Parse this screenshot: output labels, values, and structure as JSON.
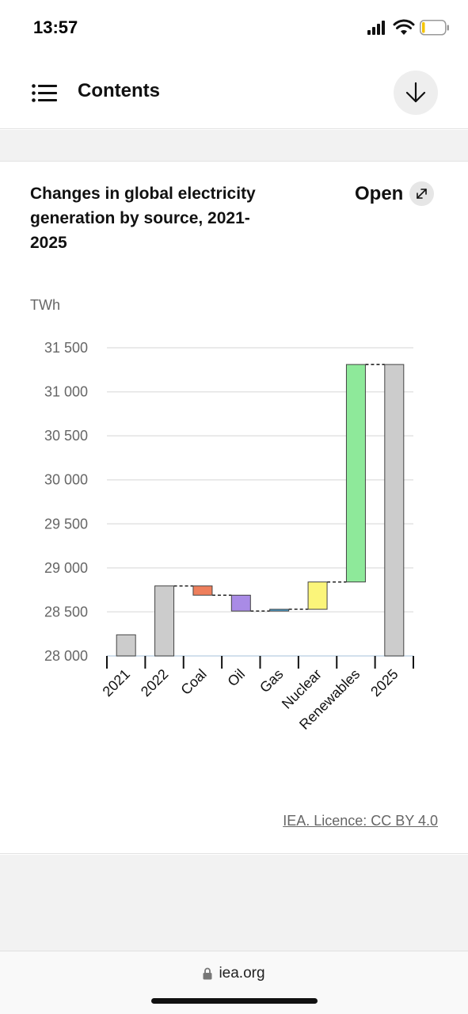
{
  "status_bar": {
    "time": "13:57",
    "icons": [
      "signal-icon",
      "wifi-icon",
      "battery-icon"
    ]
  },
  "header": {
    "title": "Contents",
    "menu_icon": "menu-list-icon",
    "download_icon": "arrow-down-icon"
  },
  "chart_card": {
    "title": "Changes in global electricity generation by source, 2021-2025",
    "open_label": "Open",
    "open_icon": "expand-icon",
    "licence": "IEA. Licence: CC BY 4.0"
  },
  "chart_data": {
    "type": "bar",
    "subtype": "waterfall",
    "ylabel": "TWh",
    "ylim": [
      28000,
      31500
    ],
    "yticks": [
      28000,
      28500,
      29000,
      29500,
      30000,
      30500,
      31000,
      31500
    ],
    "ytick_labels": [
      "28 000",
      "28 500",
      "29 000",
      "29 500",
      "30 000",
      "30 500",
      "31 000",
      "31 500"
    ],
    "grid": true,
    "categories": [
      "2021",
      "2022",
      "Coal",
      "Oil",
      "Gas",
      "Nuclear",
      "Renewables",
      "2025"
    ],
    "bars": [
      {
        "start": 28000,
        "end": 28240,
        "kind": "total",
        "color": "#cccccc"
      },
      {
        "start": 28000,
        "end": 28795,
        "kind": "total",
        "color": "#cccccc"
      },
      {
        "start": 28795,
        "end": 28690,
        "kind": "change",
        "color": "#ee7f5c"
      },
      {
        "start": 28690,
        "end": 28510,
        "kind": "change",
        "color": "#a98be6"
      },
      {
        "start": 28510,
        "end": 28530,
        "kind": "change",
        "color": "#4aa4d6"
      },
      {
        "start": 28530,
        "end": 28840,
        "kind": "change",
        "color": "#fbf57a"
      },
      {
        "start": 28840,
        "end": 31310,
        "kind": "change",
        "color": "#8ee99a"
      },
      {
        "start": 28000,
        "end": 31310,
        "kind": "total",
        "color": "#cccccc"
      }
    ]
  },
  "url_bar": {
    "url": "iea.org",
    "lock_icon": "lock-icon"
  }
}
